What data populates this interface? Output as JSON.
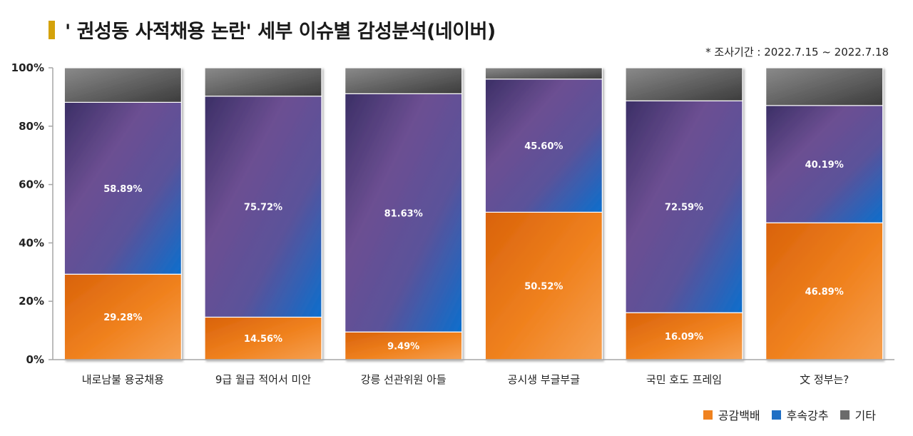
{
  "title": "' 권성동 사적채용 논란' 세부 이슈별 감성분석(네이버)",
  "period": "* 조사기간 : 2022.7.15 ~ 2022.7.18",
  "colors": {
    "title_marker": "#d4a20b",
    "empathy": "#f0821f",
    "followup": "#1f6fc4",
    "other": "#555555"
  },
  "chart_data": {
    "type": "bar",
    "stacked": true,
    "normalized": true,
    "categories": [
      "내로남불 용궁채용",
      "9급 월급 적어서 미안",
      "강릉 선관위원 아들",
      "공시생 부글부글",
      "국민 호도 프레임",
      "文 정부는?"
    ],
    "series": [
      {
        "name": "공감백배",
        "values": [
          29.28,
          14.56,
          9.49,
          50.52,
          16.09,
          46.89
        ],
        "labels": [
          "29.28%",
          "14.56%",
          "9.49%",
          "50.52%",
          "16.09%",
          "46.89%"
        ]
      },
      {
        "name": "후속강추",
        "values": [
          58.89,
          75.72,
          81.63,
          45.6,
          72.59,
          40.19
        ],
        "labels": [
          "58.89%",
          "75.72%",
          "81.63%",
          "45.60%",
          "72.59%",
          "40.19%"
        ]
      },
      {
        "name": "기타",
        "values": [
          11.83,
          9.72,
          8.88,
          3.88,
          11.32,
          12.92
        ],
        "labels": [
          "",
          "",
          "",
          "",
          "",
          ""
        ]
      }
    ],
    "y_ticks": [
      "0%",
      "20%",
      "40%",
      "60%",
      "80%",
      "100%"
    ],
    "ylim": [
      0,
      100
    ],
    "grid": false,
    "legend_position": "bottom-right"
  }
}
